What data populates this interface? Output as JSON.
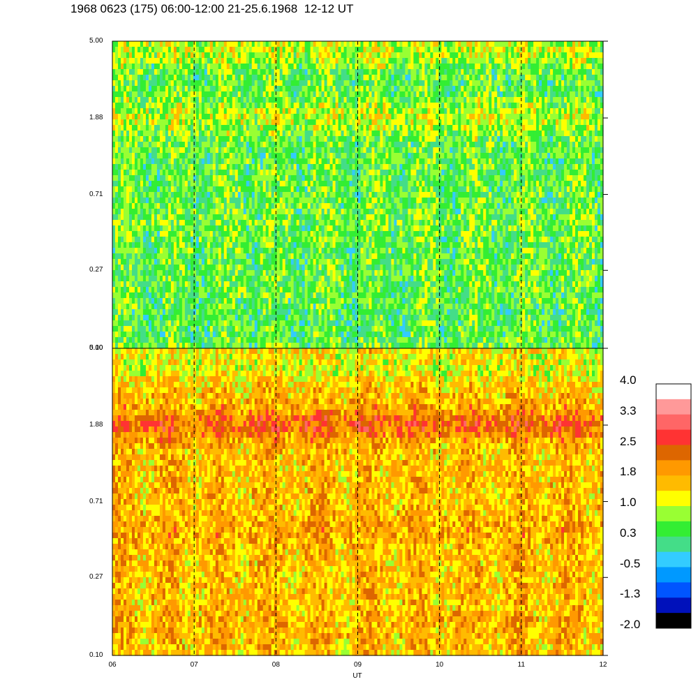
{
  "title": "1968 0623 (175) 06:00-12:00 21-25.6.1968  12-12 UT",
  "chart_data": [
    {
      "type": "heatmap",
      "panel": "top",
      "y_ticks": [
        "5.00",
        "1.88",
        "0.71",
        "0.27",
        "0.10"
      ],
      "y_values": [
        5.0,
        1.88,
        0.71,
        0.27,
        0.1
      ],
      "y_scale": "log",
      "ylim": [
        0.1,
        5.0
      ],
      "bands": [
        {
          "y": 4.5,
          "value": 1.0
        },
        {
          "y": 1.88,
          "value": 1.0
        },
        {
          "y": 0.5,
          "value": 0.6
        },
        {
          "y": 0.15,
          "value": 0.4
        }
      ],
      "background_value": 0.5
    },
    {
      "type": "heatmap",
      "panel": "bottom",
      "y_ticks": [
        "5.00",
        "1.88",
        "0.71",
        "0.27",
        "0.10"
      ],
      "y_values": [
        5.0,
        1.88,
        0.71,
        0.27,
        0.1
      ],
      "y_scale": "log",
      "ylim": [
        0.1,
        5.0
      ],
      "bands": [
        {
          "y": 4.0,
          "value": 1.1
        },
        {
          "y": 1.88,
          "value": 2.3
        },
        {
          "y": 0.5,
          "value": 1.8
        },
        {
          "y": 0.15,
          "value": 1.7
        }
      ],
      "background_value": 1.6
    }
  ],
  "x_axis": {
    "label": "UT",
    "ticks": [
      "06",
      "07",
      "08",
      "09",
      "10",
      "11",
      "12"
    ],
    "values": [
      6,
      7,
      8,
      9,
      10,
      11,
      12
    ],
    "xlim": [
      6,
      12
    ],
    "dashed_lines_at": [
      7,
      8,
      9,
      10,
      11
    ]
  },
  "colorbar": {
    "labels": [
      "4.0",
      "3.3",
      "2.5",
      "1.8",
      "1.0",
      "0.3",
      "-0.5",
      "-1.3",
      "-2.0"
    ],
    "range": [
      -2.0,
      4.0
    ],
    "colors": [
      "#ffffff",
      "#ff9999",
      "#ff6666",
      "#ff3333",
      "#dd6600",
      "#ff9900",
      "#ffbb00",
      "#ffff00",
      "#99ff33",
      "#33ee33",
      "#44dd88",
      "#33ccff",
      "#0099ff",
      "#0055ff",
      "#0011bb",
      "#000000"
    ]
  }
}
